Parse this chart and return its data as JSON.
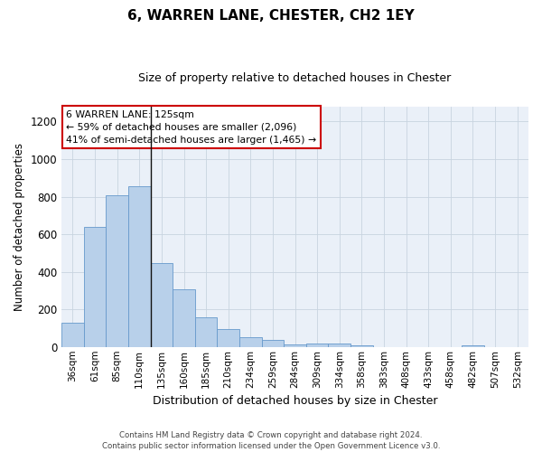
{
  "title": "6, WARREN LANE, CHESTER, CH2 1EY",
  "subtitle": "Size of property relative to detached houses in Chester",
  "xlabel": "Distribution of detached houses by size in Chester",
  "ylabel": "Number of detached properties",
  "footer_line1": "Contains HM Land Registry data © Crown copyright and database right 2024.",
  "footer_line2": "Contains public sector information licensed under the Open Government Licence v3.0.",
  "annotation_line1": "6 WARREN LANE: 125sqm",
  "annotation_line2": "← 59% of detached houses are smaller (2,096)",
  "annotation_line3": "41% of semi-detached houses are larger (1,465) →",
  "bar_color": "#b8d0ea",
  "bar_edge_color": "#6699cc",
  "vline_color": "#111111",
  "annotation_box_edgecolor": "#cc0000",
  "categories": [
    "36sqm",
    "61sqm",
    "85sqm",
    "110sqm",
    "135sqm",
    "160sqm",
    "185sqm",
    "210sqm",
    "234sqm",
    "259sqm",
    "284sqm",
    "309sqm",
    "334sqm",
    "358sqm",
    "383sqm",
    "408sqm",
    "433sqm",
    "458sqm",
    "482sqm",
    "507sqm",
    "532sqm"
  ],
  "values": [
    130,
    638,
    808,
    855,
    445,
    305,
    158,
    95,
    50,
    38,
    15,
    20,
    18,
    10,
    0,
    0,
    0,
    0,
    10,
    0,
    0
  ],
  "ylim": [
    0,
    1280
  ],
  "yticks": [
    0,
    200,
    400,
    600,
    800,
    1000,
    1200
  ],
  "vline_index": 3,
  "figsize": [
    6.0,
    5.0
  ],
  "dpi": 100,
  "bg_color": "#ffffff",
  "axes_bg_color": "#eaf0f8",
  "grid_color": "#c8d4e0"
}
